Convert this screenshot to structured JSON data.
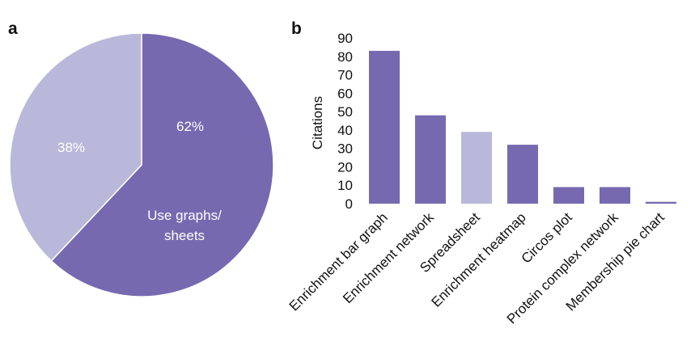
{
  "panel_labels": {
    "a": "a",
    "b": "b"
  },
  "colors": {
    "primary": "#7669b0",
    "light": "#b9b8da",
    "text": "#111111",
    "slice_text": "#ffffff"
  },
  "chart_data": [
    {
      "type": "pie",
      "panel": "a",
      "slices": [
        {
          "label": "62%",
          "sub_label_line1": "Use graphs/",
          "sub_label_line2": "sheets",
          "value": 62,
          "color": "#7669b0"
        },
        {
          "label": "38%",
          "value": 38,
          "color": "#b9b8da"
        }
      ],
      "start": "top",
      "direction": "clockwise"
    },
    {
      "type": "bar",
      "panel": "b",
      "ylabel": "Citations",
      "ylim": [
        0,
        90
      ],
      "yticks": [
        "0",
        "10",
        "20",
        "30",
        "40",
        "50",
        "60",
        "70",
        "80",
        "90"
      ],
      "categories": [
        "Enrichment bar graph",
        "Enrichment network",
        "Spreadsheet",
        "Enrichment heatmap",
        "Circos plot",
        "Protein complex network",
        "Membership pie chart"
      ],
      "values": [
        83,
        48,
        39,
        32,
        9,
        9,
        1
      ],
      "colors": [
        "#7669b0",
        "#7669b0",
        "#b9b8da",
        "#7669b0",
        "#7669b0",
        "#7669b0",
        "#7669b0"
      ]
    }
  ]
}
